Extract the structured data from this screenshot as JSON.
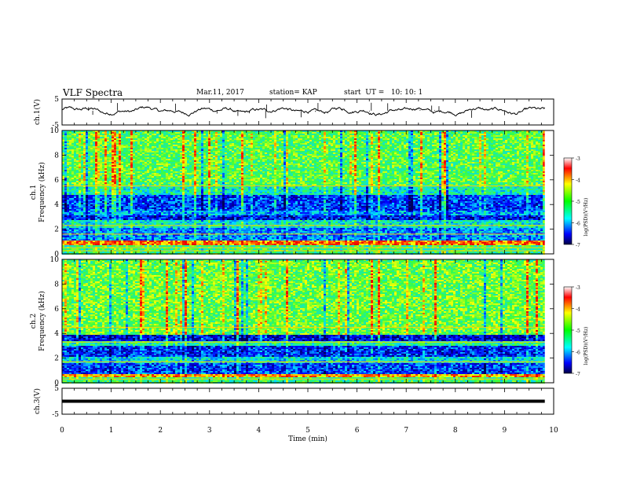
{
  "header": {
    "title": "VLF Spectra",
    "date": "Mar.11, 2017",
    "station": "station= KAP",
    "start": "start  UT =   10: 10: 1"
  },
  "chart_data": [
    {
      "type": "line",
      "name": "ch1-waveform",
      "ylabel": "ch.1(V)",
      "ylim": [
        -5,
        5
      ],
      "yticks": [
        "5",
        "-5"
      ],
      "xlim": [
        0,
        10
      ],
      "x_end": 9.82,
      "baseline": 0.5,
      "wander": 1.6,
      "line_color": "#000000"
    },
    {
      "type": "heatmap",
      "name": "ch1-spectrogram",
      "ylabel": "ch.1\nFrequency (kHz)",
      "ylim": [
        0,
        10
      ],
      "yticks": [
        "0",
        "2",
        "4",
        "6",
        "8",
        "10"
      ],
      "xlim": [
        0,
        10
      ],
      "x_end": 9.82,
      "colorbar": {
        "label": "log(PSD)(V²/Hz)",
        "range": [
          -7,
          -3
        ],
        "ticks": [
          "-3",
          "-4",
          "-5",
          "-6",
          "-7"
        ]
      },
      "bands": [
        {
          "from": 0.0,
          "to": 0.8,
          "level": -5.0
        },
        {
          "from": 0.8,
          "to": 1.1,
          "level": -3.6
        },
        {
          "from": 1.1,
          "to": 2.2,
          "level": -5.9
        },
        {
          "from": 2.2,
          "to": 2.8,
          "level": -5.4
        },
        {
          "from": 2.8,
          "to": 3.2,
          "level": -6.4
        },
        {
          "from": 3.2,
          "to": 3.6,
          "level": -5.8
        },
        {
          "from": 3.6,
          "to": 4.8,
          "level": -6.2
        },
        {
          "from": 4.8,
          "to": 5.6,
          "level": -5.3
        },
        {
          "from": 5.6,
          "to": 10.0,
          "level": -4.8
        }
      ],
      "lines_khz": [
        0.25,
        0.5,
        1.6,
        2.3,
        5.5
      ]
    },
    {
      "type": "heatmap",
      "name": "ch2-spectrogram",
      "ylabel": "ch.2\nFrequency (kHz)",
      "ylim": [
        0,
        10
      ],
      "yticks": [
        "0",
        "2",
        "4",
        "6",
        "8",
        "10"
      ],
      "xlim": [
        0,
        10
      ],
      "x_end": 9.82,
      "colorbar": {
        "label": "log(PSD)(V²/Hz)",
        "range": [
          -7,
          -3
        ],
        "ticks": [
          "-3",
          "-4",
          "-5",
          "-6",
          "-7"
        ]
      },
      "bands": [
        {
          "from": 0.0,
          "to": 0.5,
          "level": -5.0
        },
        {
          "from": 0.5,
          "to": 0.8,
          "level": -3.8
        },
        {
          "from": 0.8,
          "to": 1.6,
          "level": -6.2
        },
        {
          "from": 1.6,
          "to": 2.2,
          "level": -5.5
        },
        {
          "from": 2.2,
          "to": 3.0,
          "level": -6.3
        },
        {
          "from": 3.0,
          "to": 3.5,
          "level": -5.2
        },
        {
          "from": 3.5,
          "to": 3.9,
          "level": -6.5
        },
        {
          "from": 3.9,
          "to": 10.0,
          "level": -4.7
        }
      ],
      "lines_khz": [
        0.3,
        1.7,
        3.3,
        4.5
      ]
    },
    {
      "type": "line",
      "name": "ch3-waveform",
      "ylabel": "ch.3(V)",
      "ylim": [
        -5,
        5
      ],
      "yticks": [
        "5",
        "-5"
      ],
      "xlim": [
        0,
        10
      ],
      "x_end": 9.82,
      "baseline": 0.0,
      "wander": 0.0,
      "line_color": "#000000"
    }
  ],
  "xaxis": {
    "label": "Time (min)",
    "ticks": [
      "0",
      "1",
      "2",
      "3",
      "4",
      "5",
      "6",
      "7",
      "8",
      "9",
      "10"
    ]
  }
}
